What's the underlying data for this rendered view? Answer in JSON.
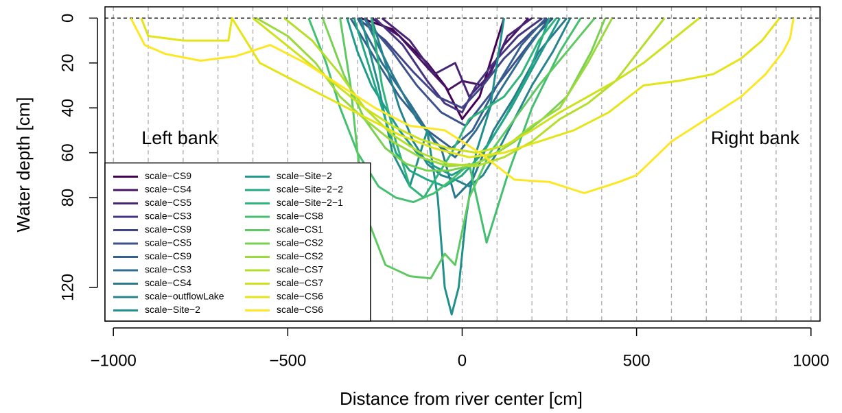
{
  "chart_data": {
    "type": "line",
    "x_label": "Distance from river center [cm]",
    "y_label": "Water depth [cm]",
    "xlim": [
      -1024,
      1026
    ],
    "ylim": [
      -5,
      135
    ],
    "y_reversed": true,
    "xticks": [
      {
        "value": -1000,
        "label": "−1000"
      },
      {
        "value": -500,
        "label": "−500"
      },
      0,
      500,
      1000
    ],
    "yticks": [
      0,
      20,
      40,
      60,
      80,
      120
    ],
    "xgrid": [
      -1000,
      -900,
      -800,
      -700,
      -600,
      -500,
      -400,
      -300,
      -200,
      -100,
      0,
      100,
      200,
      300,
      400,
      500,
      600,
      700,
      800,
      900,
      1000
    ],
    "hline": 0,
    "legend": "bottom-left",
    "annotations": [
      {
        "text": "Left bank",
        "x": -810,
        "y": 54
      },
      {
        "text": "Right bank",
        "x": 840,
        "y": 54
      }
    ],
    "series": [
      {
        "name": "scale−CS9",
        "color": "#440154",
        "x": [
          -290,
          -200,
          -100,
          -50,
          0,
          50,
          100,
          120
        ],
        "values": [
          0,
          5,
          20,
          30,
          45,
          35,
          10,
          0
        ]
      },
      {
        "name": "scale−CS4",
        "color": "#471365",
        "x": [
          -260,
          -180,
          -100,
          -40,
          0,
          60,
          120,
          190
        ],
        "values": [
          0,
          8,
          22,
          32,
          28,
          30,
          12,
          0
        ]
      },
      {
        "name": "scale−CS5",
        "color": "#482475",
        "x": [
          -230,
          -150,
          -80,
          -20,
          20,
          80,
          130,
          200
        ],
        "values": [
          0,
          10,
          25,
          20,
          35,
          25,
          8,
          0
        ]
      },
      {
        "name": "scale−CS3",
        "color": "#463480",
        "x": [
          -250,
          -170,
          -100,
          -50,
          0,
          40,
          90,
          160,
          230
        ],
        "values": [
          0,
          12,
          28,
          38,
          42,
          30,
          20,
          8,
          0
        ]
      },
      {
        "name": "scale−CS9",
        "color": "#414487",
        "x": [
          -300,
          -220,
          -140,
          -70,
          0,
          60,
          120,
          200,
          250
        ],
        "values": [
          0,
          10,
          24,
          35,
          40,
          30,
          18,
          6,
          0
        ]
      },
      {
        "name": "scale−CS5",
        "color": "#3b528b",
        "x": [
          -280,
          -200,
          -130,
          -60,
          10,
          70,
          140,
          210,
          260
        ],
        "values": [
          0,
          15,
          30,
          42,
          48,
          36,
          22,
          8,
          0
        ]
      },
      {
        "name": "scale−CS9",
        "color": "#35608d",
        "x": [
          -320,
          -250,
          -180,
          -100,
          -30,
          30,
          100,
          170,
          240
        ],
        "values": [
          0,
          18,
          35,
          50,
          58,
          50,
          30,
          12,
          0
        ]
      },
      {
        "name": "scale−CS3",
        "color": "#2f6c8e",
        "x": [
          -300,
          -230,
          -150,
          -80,
          -20,
          40,
          110,
          180,
          250
        ],
        "values": [
          0,
          20,
          38,
          55,
          62,
          50,
          32,
          15,
          0
        ]
      },
      {
        "name": "scale−CS4",
        "color": "#2a788e",
        "x": [
          -280,
          -200,
          -130,
          -60,
          -20,
          30,
          90,
          150,
          220,
          300
        ],
        "values": [
          0,
          25,
          45,
          58,
          80,
          72,
          50,
          35,
          15,
          0
        ]
      },
      {
        "name": "scale−outflowLake",
        "color": "#25848e",
        "x": [
          -260,
          -220,
          -180,
          -140,
          -100,
          -60,
          -20,
          20,
          60,
          100,
          150,
          200,
          260,
          310
        ],
        "values": [
          0,
          20,
          40,
          55,
          65,
          70,
          72,
          75,
          70,
          60,
          45,
          30,
          15,
          0
        ]
      },
      {
        "name": "scale−Site−2",
        "color": "#21908d",
        "x": [
          -290,
          -240,
          -200,
          -150,
          -100,
          -70,
          -50,
          -30,
          -10,
          10,
          40,
          80,
          120
        ],
        "values": [
          0,
          30,
          60,
          75,
          50,
          80,
          120,
          132,
          120,
          90,
          60,
          40,
          0
        ]
      },
      {
        "name": "scale−Site−2",
        "color": "#1e9b8a",
        "x": [
          -330,
          -300,
          -260,
          -220,
          -180,
          -130,
          -80,
          -30,
          30,
          80,
          140,
          210,
          280
        ],
        "values": [
          0,
          15,
          30,
          40,
          50,
          60,
          66,
          70,
          65,
          55,
          40,
          20,
          0
        ]
      },
      {
        "name": "scale−Site−2−2",
        "color": "#22a884",
        "x": [
          -310,
          -270,
          -230,
          -190,
          -150,
          -100,
          -50,
          0,
          60,
          120,
          190,
          250
        ],
        "values": [
          0,
          20,
          40,
          60,
          68,
          72,
          75,
          70,
          60,
          45,
          25,
          0
        ]
      },
      {
        "name": "scale−Site−2−1",
        "color": "#2fb47c",
        "x": [
          -260,
          -230,
          -190,
          -150,
          -110,
          -70,
          -30,
          20,
          70,
          120,
          170,
          220,
          270
        ],
        "values": [
          0,
          30,
          55,
          75,
          80,
          70,
          60,
          45,
          40,
          35,
          25,
          10,
          0
        ]
      },
      {
        "name": "scale−CS8",
        "color": "#44bf70",
        "x": [
          -440,
          -390,
          -350,
          -300,
          -240,
          -190,
          -140,
          -80,
          -30,
          20,
          70,
          130,
          200,
          280,
          340
        ],
        "values": [
          0,
          20,
          40,
          60,
          75,
          80,
          82,
          78,
          72,
          65,
          100,
          70,
          40,
          15,
          0
        ]
      },
      {
        "name": "scale−CS1",
        "color": "#5ec962",
        "x": [
          -350,
          -320,
          -300,
          -270,
          -220,
          -150,
          -90,
          -50,
          -20,
          20,
          80,
          150,
          220,
          300,
          380
        ],
        "values": [
          0,
          30,
          60,
          90,
          110,
          115,
          116,
          105,
          110,
          80,
          60,
          45,
          30,
          15,
          0
        ]
      },
      {
        "name": "scale−CS2",
        "color": "#7ad151",
        "x": [
          -400,
          -340,
          -280,
          -220,
          -160,
          -100,
          -40,
          20,
          80,
          150,
          230,
          300,
          370,
          410
        ],
        "values": [
          0,
          25,
          45,
          58,
          65,
          68,
          68,
          66,
          62,
          55,
          45,
          35,
          15,
          0
        ]
      },
      {
        "name": "scale−CS2",
        "color": "#9bd93c",
        "x": [
          -590,
          -500,
          -420,
          -350,
          -280,
          -200,
          -120,
          -40,
          40,
          120,
          200,
          280,
          360,
          430
        ],
        "values": [
          0,
          8,
          20,
          35,
          45,
          55,
          62,
          66,
          65,
          58,
          48,
          40,
          20,
          0
        ]
      },
      {
        "name": "scale−CS7",
        "color": "#b5de2b",
        "x": [
          -510,
          -430,
          -350,
          -280,
          -200,
          -120,
          -40,
          40,
          120,
          200,
          280,
          360,
          440,
          520,
          580
        ],
        "values": [
          0,
          10,
          25,
          40,
          52,
          60,
          65,
          66,
          62,
          55,
          45,
          38,
          28,
          12,
          0
        ]
      },
      {
        "name": "scale−CS7",
        "color": "#cde11d",
        "x": [
          -600,
          -520,
          -440,
          -360,
          -280,
          -200,
          -120,
          -40,
          40,
          120,
          200,
          280,
          360,
          440,
          520,
          600,
          680
        ],
        "values": [
          0,
          10,
          20,
          30,
          40,
          48,
          54,
          58,
          60,
          57,
          50,
          42,
          35,
          28,
          20,
          10,
          0
        ]
      },
      {
        "name": "scale−CS6",
        "color": "#e5e419",
        "x": [
          -920,
          -900,
          -800,
          -670,
          -660,
          -580,
          -480,
          -380,
          -280,
          -180,
          -80,
          20,
          120,
          220,
          320,
          420,
          520,
          620,
          720,
          800,
          860,
          910
        ],
        "values": [
          0,
          8,
          10,
          10,
          0,
          20,
          28,
          36,
          44,
          52,
          58,
          62,
          60,
          55,
          50,
          42,
          30,
          28,
          25,
          18,
          10,
          0
        ]
      },
      {
        "name": "scale−CS6",
        "color": "#fde725",
        "x": [
          -950,
          -910,
          -850,
          -750,
          -650,
          -550,
          -450,
          -350,
          -250,
          -150,
          -50,
          50,
          150,
          250,
          350,
          450,
          500,
          600,
          700,
          800,
          870,
          920,
          940,
          950
        ],
        "values": [
          0,
          12,
          16,
          19,
          17,
          12,
          20,
          30,
          40,
          48,
          50,
          60,
          72,
          73,
          78,
          73,
          70,
          55,
          45,
          35,
          25,
          15,
          9,
          0
        ]
      }
    ]
  }
}
